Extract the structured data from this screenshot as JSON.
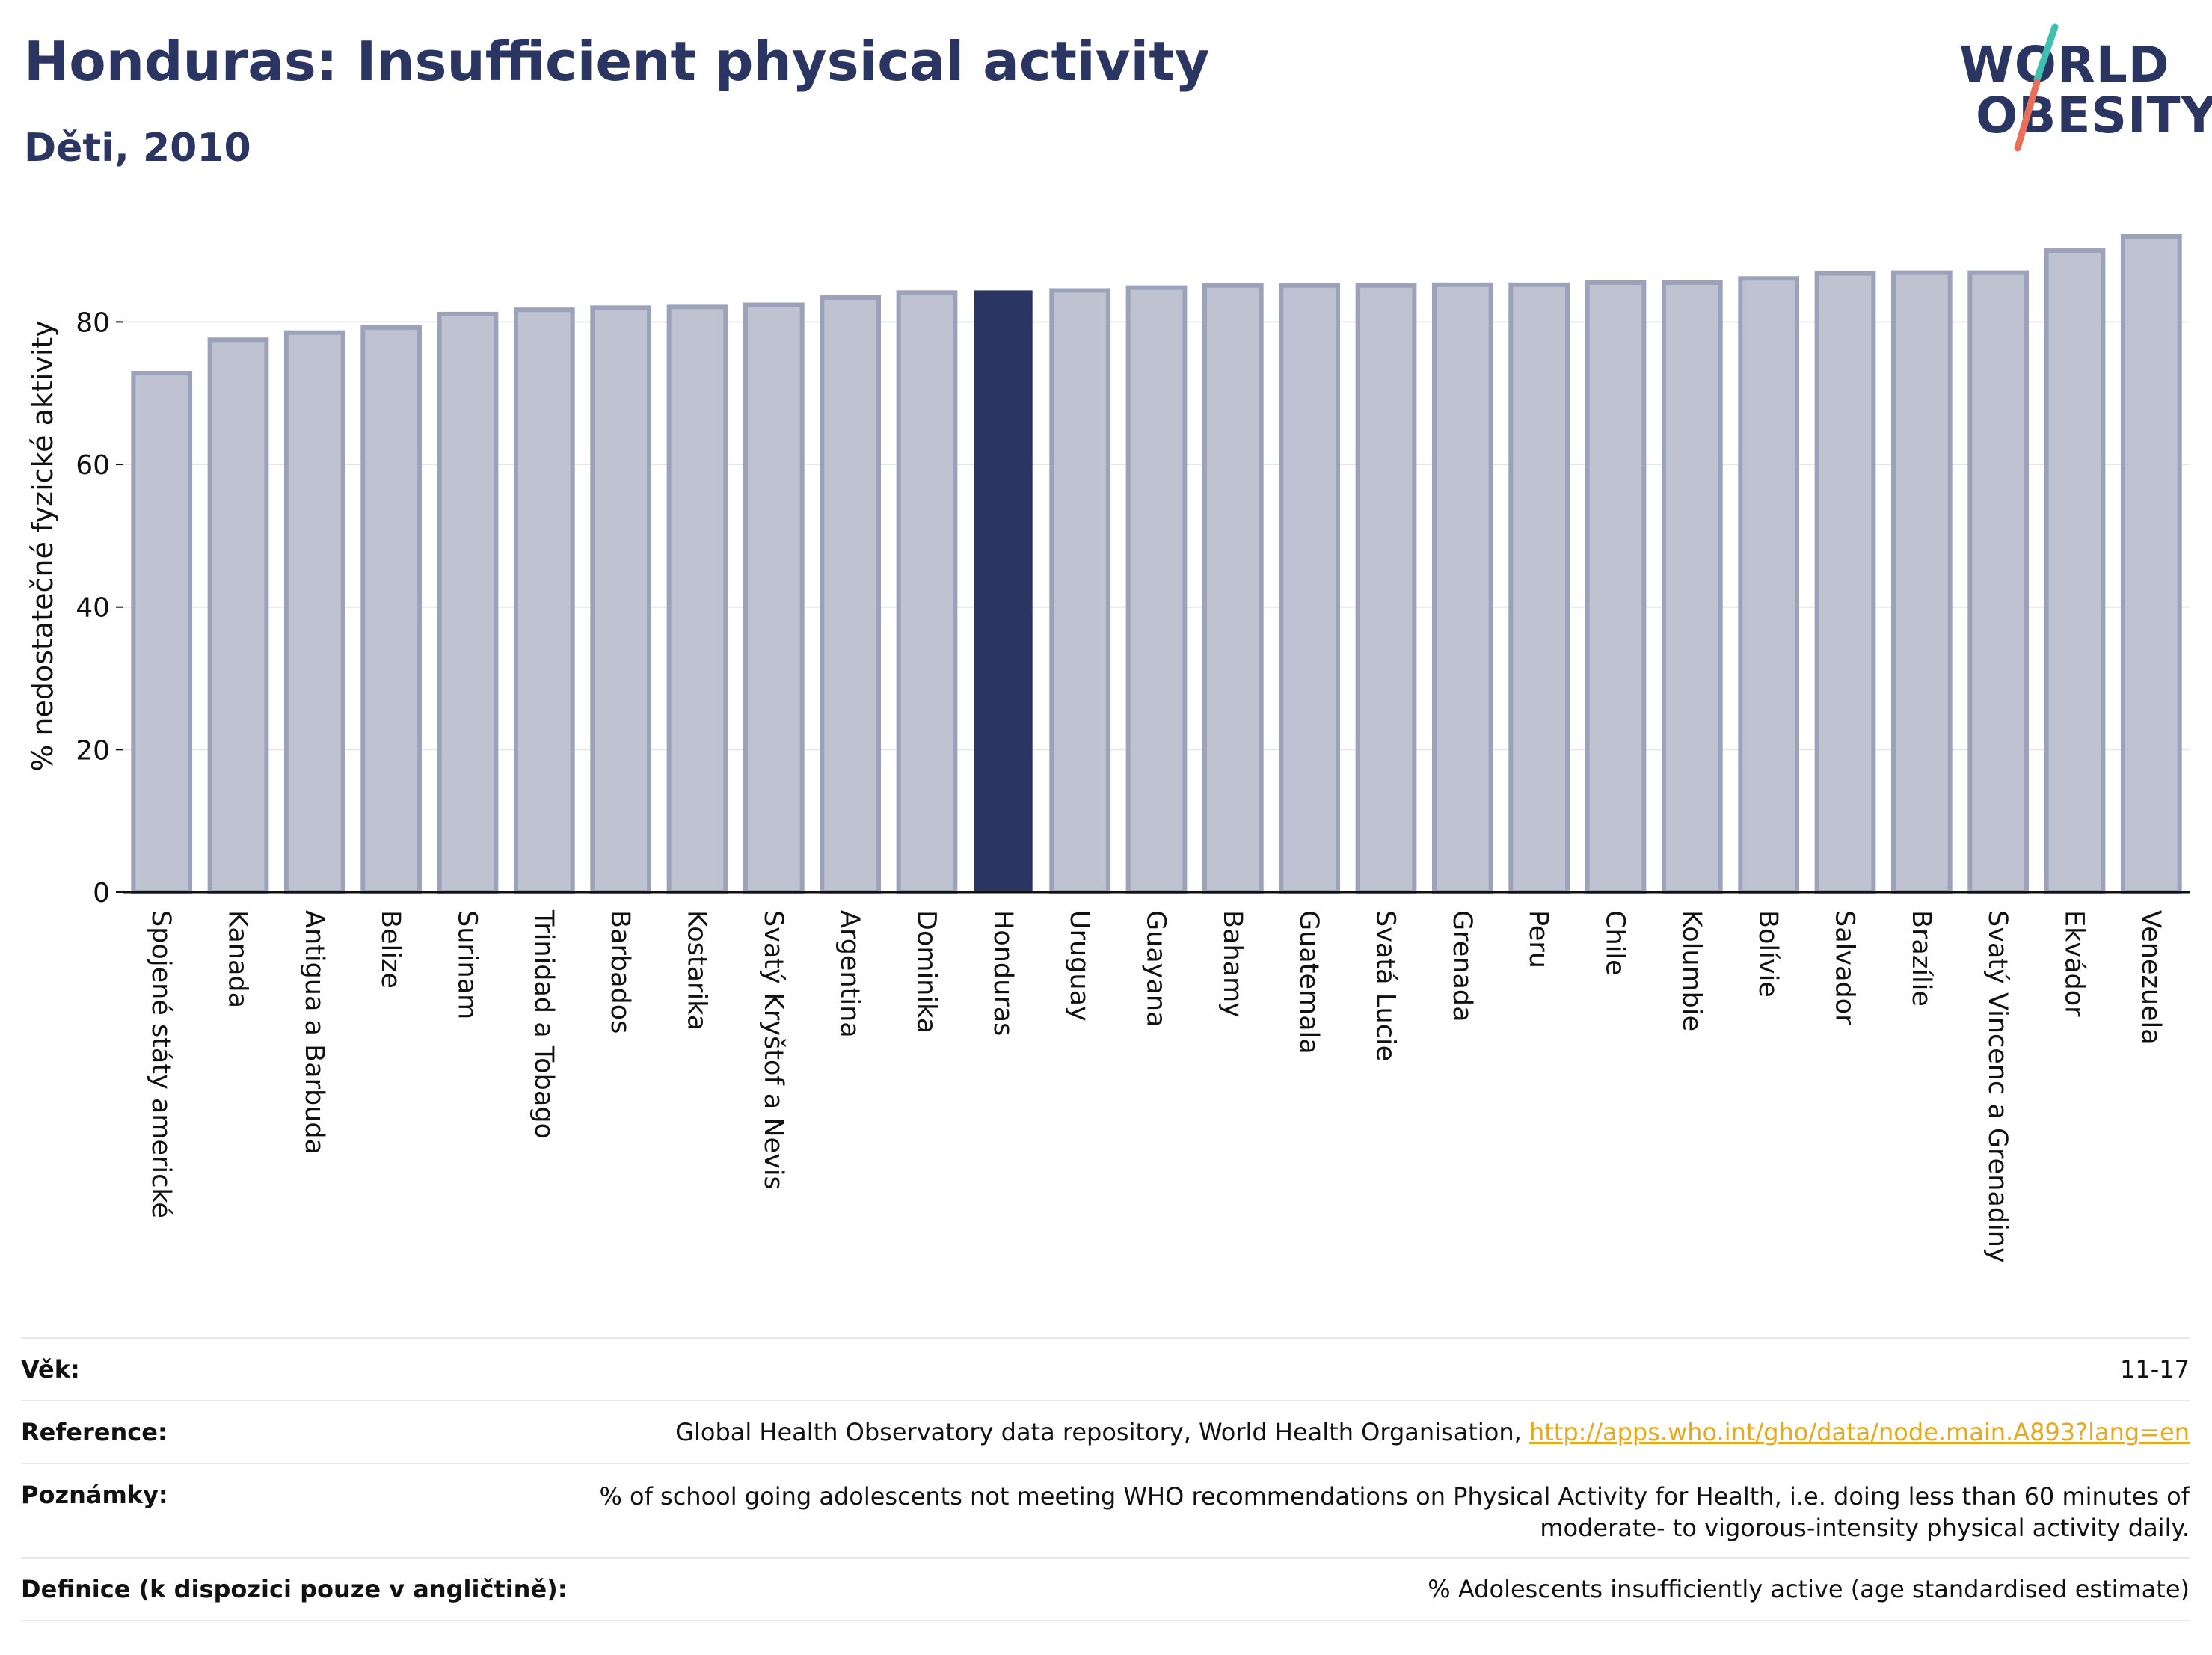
{
  "header": {
    "title": "Honduras: Insufficient physical activity",
    "subtitle": "Děti, 2010"
  },
  "logo": {
    "line1": "WORLD",
    "line2": "OBESITY",
    "text_color": "#2b3562",
    "slash_colors": [
      "#3fbfb0",
      "#e8705a"
    ]
  },
  "colors": {
    "bar": "#bfc2d0",
    "bar_stroke": "#9da2bb",
    "highlight": "#2b3562",
    "axis": "#111111"
  },
  "chart_data": {
    "type": "bar",
    "ylabel": "% nedostatečné fyzické aktivity",
    "ylim": [
      0,
      92
    ],
    "yticks": [
      0,
      20,
      40,
      60,
      80
    ],
    "grid": true,
    "highlight": "Honduras",
    "categories": [
      "Spojené státy americké",
      "Kanada",
      "Antigua a Barbuda",
      "Belize",
      "Surinam",
      "Trinidad a Tobago",
      "Barbados",
      "Kostarika",
      "Svatý Kryštof a Nevis",
      "Argentina",
      "Dominika",
      "Honduras",
      "Uruguay",
      "Guayana",
      "Bahamy",
      "Guatemala",
      "Svatá Lucie",
      "Grenada",
      "Peru",
      "Chile",
      "Kolumbie",
      "Bolívie",
      "Salvador",
      "Brazílie",
      "Svatý Vincenc a Grenadiny",
      "Ekvádor",
      "Venezuela"
    ],
    "values": [
      72.8,
      77.5,
      78.5,
      79.2,
      81.1,
      81.7,
      82.0,
      82.1,
      82.4,
      83.4,
      84.1,
      84.3,
      84.4,
      84.8,
      85.1,
      85.1,
      85.1,
      85.2,
      85.2,
      85.5,
      85.5,
      86.1,
      86.8,
      86.9,
      86.9,
      90.0,
      92.0
    ]
  },
  "info": {
    "age_label": "Věk:",
    "age_value": "11-17",
    "reference_label": "Reference:",
    "reference_text": "Global Health Observatory data repository, World Health Organisation, ",
    "reference_link": "http://apps.who.int/gho/data/node.main.A893?lang=en",
    "notes_label": "Poznámky:",
    "notes_line1": "% of school going adolescents not meeting WHO recommendations on Physical Activity for Health, i.e. doing less than 60 minutes of",
    "notes_line2": "moderate- to vigorous-intensity physical activity daily.",
    "definition_label": "Definice (k dispozici pouze v angličtině):",
    "definition_value": "% Adolescents insufficiently active (age standardised estimate)"
  }
}
